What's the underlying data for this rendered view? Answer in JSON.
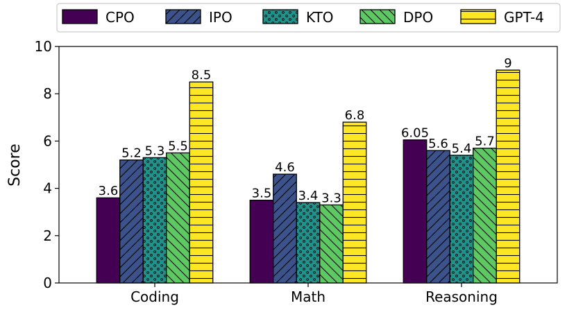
{
  "chart_data": {
    "type": "bar",
    "title": "",
    "xlabel": "",
    "ylabel": "Score",
    "ylim": [
      0,
      10
    ],
    "yticks": [
      0,
      2,
      4,
      6,
      8,
      10
    ],
    "grid": false,
    "legend_position": "top",
    "categories": [
      "Coding",
      "Math",
      "Reasoning"
    ],
    "series": [
      {
        "name": "CPO",
        "values": [
          3.6,
          3.5,
          6.05
        ],
        "value_labels": [
          "3.6",
          "3.5",
          "6.05"
        ],
        "color": "#440154",
        "pattern": "none"
      },
      {
        "name": "IPO",
        "values": [
          5.2,
          4.6,
          5.6
        ],
        "value_labels": [
          "5.2",
          "4.6",
          "5.6"
        ],
        "color": "#3b528b",
        "pattern": "forward-diagonal"
      },
      {
        "name": "KTO",
        "values": [
          5.3,
          3.4,
          5.4
        ],
        "value_labels": [
          "5.3",
          "3.4",
          "5.4"
        ],
        "color": "#21918c",
        "pattern": "dots"
      },
      {
        "name": "DPO",
        "values": [
          5.5,
          3.3,
          5.7
        ],
        "value_labels": [
          "5.5",
          "3.3",
          "5.7"
        ],
        "color": "#5ec962",
        "pattern": "back-diagonal"
      },
      {
        "name": "GPT-4",
        "values": [
          8.5,
          6.8,
          9
        ],
        "value_labels": [
          "8.5",
          "6.8",
          "9"
        ],
        "color": "#fde725",
        "pattern": "horizontal"
      }
    ]
  }
}
